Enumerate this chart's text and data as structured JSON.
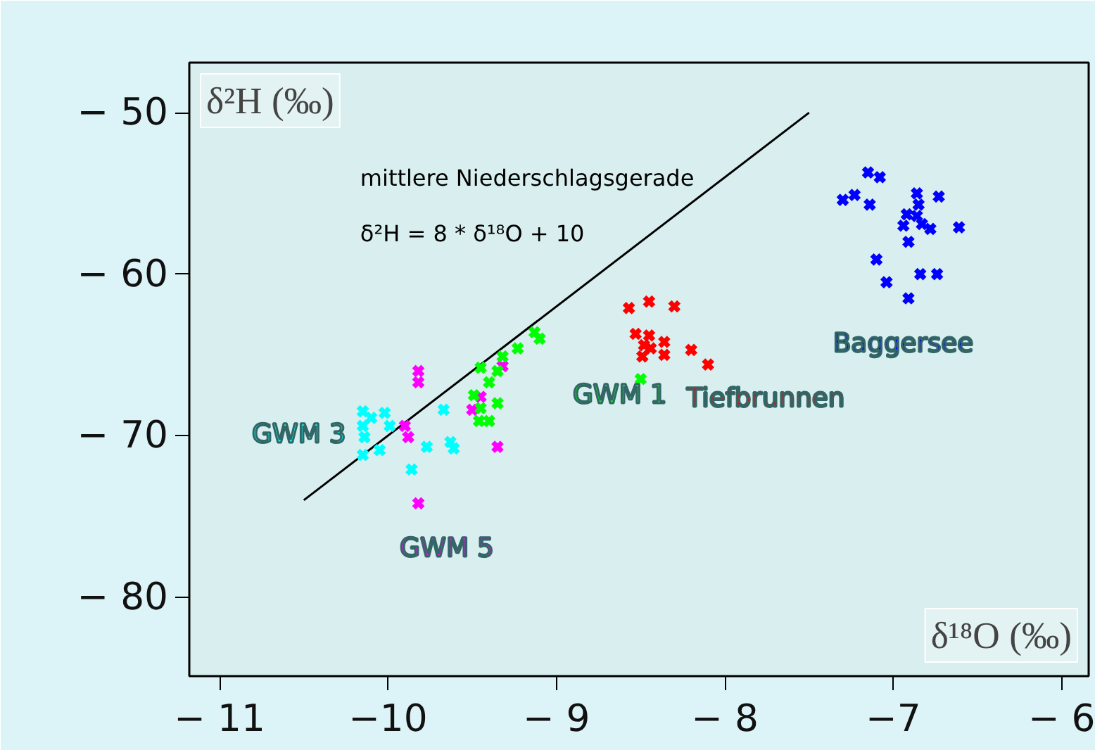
{
  "chart_data": {
    "type": "scatter",
    "xlabel": "δ¹⁸O (‰)",
    "ylabel": "δ²H (‰)",
    "xlim": [
      -11.18,
      -5.84
    ],
    "ylim": [
      -84.9,
      -46.9
    ],
    "xticks": [
      {
        "value": -11,
        "label": "− 11"
      },
      {
        "value": -10,
        "label": "−10"
      },
      {
        "value": -9,
        "label": "− 9"
      },
      {
        "value": -8,
        "label": "− 8"
      },
      {
        "value": -7,
        "label": "−7"
      },
      {
        "value": -6,
        "label": "− 6"
      }
    ],
    "yticks": [
      {
        "value": -50,
        "label": "− 50"
      },
      {
        "value": -60,
        "label": "− 60"
      },
      {
        "value": -70,
        "label": "− 70"
      },
      {
        "value": -80,
        "label": "− 80"
      }
    ],
    "grid": false,
    "marker": "cross",
    "annotations": [
      "mittlere Niederschlagsgerade",
      "δ²H = 8 * δ¹⁸O + 10"
    ],
    "series": [
      {
        "type": "line",
        "marker": "none",
        "color": "#000000",
        "x": [
          -10.5,
          -7.5
        ],
        "values": [
          -74,
          -50
        ]
      },
      {
        "name": "GWM 3",
        "color": "#00ffff",
        "x": [
          -10.15,
          -10.02,
          -10.1,
          -10.15,
          -9.99,
          -10.14,
          -10.15,
          -10.05,
          -9.67,
          -9.77,
          -9.63,
          -9.61,
          -9.86
        ],
        "values": [
          -68.5,
          -68.6,
          -68.9,
          -69.4,
          -69.4,
          -70.1,
          -71.2,
          -70.9,
          -68.4,
          -70.7,
          -70.4,
          -70.8,
          -72.1
        ]
      },
      {
        "name": "GWM 5",
        "color": "#ff00ff",
        "x": [
          -9.82,
          -9.82,
          -9.9,
          -9.88,
          -9.45,
          -9.5,
          -9.35,
          -9.82,
          -9.32
        ],
        "values": [
          -66.0,
          -66.7,
          -69.4,
          -70.1,
          -67.6,
          -68.4,
          -70.7,
          -74.2,
          -65.7
        ]
      },
      {
        "name": "GWM 1",
        "color": "#00ff00",
        "x": [
          -9.1,
          -9.13,
          -9.23,
          -9.32,
          -9.45,
          -9.35,
          -9.4,
          -9.49,
          -9.45,
          -9.35,
          -9.46,
          -9.4,
          -8.5
        ],
        "values": [
          -64.0,
          -63.6,
          -64.6,
          -65.1,
          -65.8,
          -66.0,
          -66.7,
          -67.5,
          -68.3,
          -68.0,
          -69.1,
          -69.1,
          -66.5
        ]
      },
      {
        "name": "Tiefbrunnen",
        "color": "#ff0000",
        "x": [
          -8.57,
          -8.45,
          -8.3,
          -8.53,
          -8.45,
          -8.48,
          -8.44,
          -8.36,
          -8.49,
          -8.36,
          -8.2,
          -8.1
        ],
        "values": [
          -62.1,
          -61.7,
          -62.0,
          -63.7,
          -63.8,
          -64.4,
          -64.6,
          -64.2,
          -65.1,
          -65.0,
          -64.7,
          -65.6
        ]
      },
      {
        "name": "Baggersee",
        "color": "#0000ff",
        "x": [
          -7.15,
          -7.08,
          -7.3,
          -7.23,
          -7.14,
          -6.86,
          -6.73,
          -6.85,
          -6.92,
          -6.86,
          -6.94,
          -6.83,
          -6.78,
          -6.61,
          -6.91,
          -7.1,
          -7.04,
          -6.84,
          -6.74,
          -6.91
        ],
        "values": [
          -53.7,
          -54.0,
          -55.4,
          -55.1,
          -55.7,
          -55.0,
          -55.2,
          -55.7,
          -56.3,
          -56.4,
          -57.0,
          -56.9,
          -57.2,
          -57.1,
          -58.0,
          -59.1,
          -60.5,
          -60.0,
          -60.0,
          -61.5
        ]
      }
    ]
  }
}
